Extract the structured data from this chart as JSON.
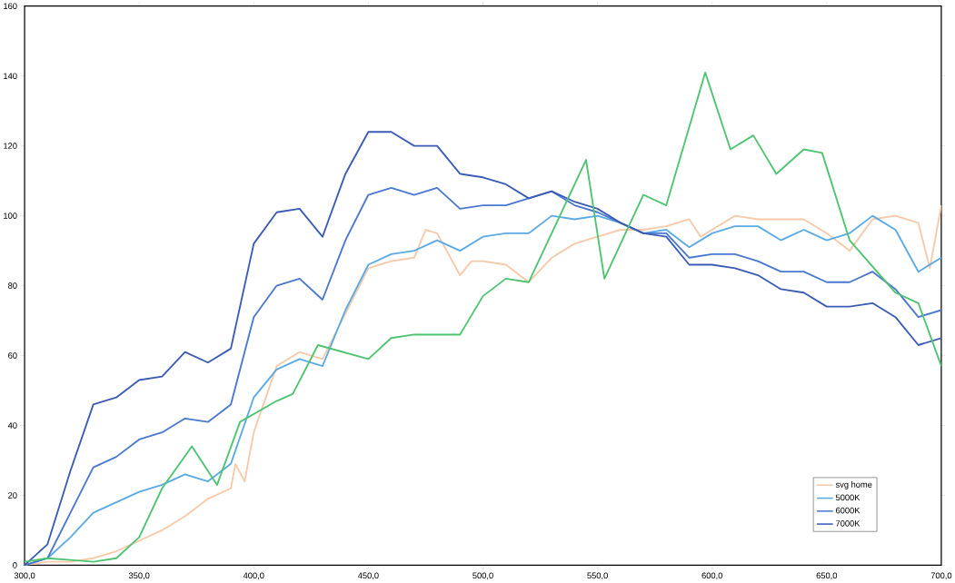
{
  "chart_data": {
    "type": "line",
    "xlim": [
      300,
      700
    ],
    "ylim": [
      0,
      160
    ],
    "xticks": [
      {
        "value": 300,
        "label": "300,0"
      },
      {
        "value": 350,
        "label": "350,0"
      },
      {
        "value": 400,
        "label": "400,0"
      },
      {
        "value": 450,
        "label": "450,0"
      },
      {
        "value": 500,
        "label": "500,0"
      },
      {
        "value": 550,
        "label": "550,0"
      },
      {
        "value": 600,
        "label": "600,0"
      },
      {
        "value": 650,
        "label": "650,0"
      },
      {
        "value": 700,
        "label": "700,0"
      }
    ],
    "yticks": [
      0,
      20,
      40,
      60,
      80,
      100,
      120,
      140,
      160
    ],
    "grid": false,
    "legend": "bottom right",
    "marker": "none",
    "line_style": "solid",
    "series": [
      {
        "name": "svg home",
        "color": "#f7c9a8",
        "x": [
          300,
          310,
          320,
          330,
          340,
          350,
          360,
          370,
          380,
          390,
          392,
          396,
          400,
          410,
          420,
          430,
          440,
          450,
          460,
          470,
          475,
          480,
          490,
          495,
          500,
          510,
          520,
          530,
          540,
          550,
          560,
          570,
          580,
          590,
          595,
          600,
          610,
          620,
          630,
          640,
          650,
          660,
          670,
          680,
          690,
          695,
          700
        ],
        "values": [
          0,
          1,
          1,
          2,
          4,
          7,
          10,
          14,
          19,
          22,
          29,
          24,
          38,
          57,
          61,
          59,
          72,
          85,
          87,
          88,
          96,
          95,
          83,
          87,
          87,
          86,
          81,
          88,
          92,
          94,
          96,
          96,
          97,
          99,
          94,
          96,
          100,
          99,
          99,
          99,
          95,
          90,
          99,
          100,
          98,
          85,
          103
        ]
      },
      {
        "name": "5000K",
        "color": "#5aaae6",
        "x": [
          300,
          310,
          320,
          330,
          340,
          350,
          360,
          370,
          380,
          390,
          400,
          410,
          420,
          430,
          440,
          450,
          460,
          470,
          480,
          490,
          500,
          510,
          520,
          530,
          540,
          550,
          560,
          570,
          580,
          590,
          600,
          610,
          620,
          630,
          640,
          650,
          660,
          670,
          680,
          690,
          700
        ],
        "values": [
          0,
          2,
          8,
          15,
          18,
          21,
          23,
          26,
          24,
          29,
          48,
          56,
          59,
          57,
          73,
          86,
          89,
          90,
          93,
          90,
          94,
          95,
          95,
          100,
          99,
          100,
          98,
          95,
          96,
          91,
          95,
          97,
          97,
          93,
          96,
          93,
          95,
          100,
          96,
          84,
          88
        ]
      },
      {
        "name": "6000K",
        "color": "#4a78d0",
        "x": [
          300,
          310,
          320,
          330,
          340,
          350,
          360,
          370,
          380,
          390,
          400,
          410,
          420,
          430,
          440,
          450,
          460,
          470,
          480,
          490,
          500,
          510,
          520,
          530,
          540,
          550,
          560,
          570,
          580,
          590,
          600,
          610,
          620,
          630,
          640,
          650,
          660,
          670,
          680,
          690,
          700
        ],
        "values": [
          0,
          2,
          15,
          28,
          31,
          36,
          38,
          42,
          41,
          46,
          71,
          80,
          82,
          76,
          93,
          106,
          108,
          106,
          108,
          102,
          103,
          103,
          105,
          107,
          103,
          101,
          98,
          95,
          95,
          88,
          89,
          89,
          87,
          84,
          84,
          81,
          81,
          84,
          79,
          71,
          73
        ]
      },
      {
        "name": "7000K",
        "color": "#3a5cb4",
        "x": [
          300,
          310,
          320,
          330,
          340,
          350,
          360,
          370,
          380,
          390,
          400,
          410,
          420,
          430,
          440,
          450,
          460,
          470,
          480,
          490,
          500,
          510,
          520,
          530,
          540,
          550,
          560,
          570,
          580,
          590,
          600,
          610,
          620,
          630,
          640,
          650,
          660,
          670,
          680,
          690,
          700
        ],
        "values": [
          0,
          6,
          27,
          46,
          48,
          53,
          54,
          61,
          58,
          62,
          92,
          101,
          102,
          94,
          112,
          124,
          124,
          120,
          120,
          112,
          111,
          109,
          105,
          107,
          104,
          102,
          98,
          95,
          94,
          86,
          86,
          85,
          83,
          79,
          78,
          74,
          74,
          75,
          71,
          63,
          65
        ]
      },
      {
        "color": "#4cc470",
        "x": [
          300,
          310,
          320,
          330,
          340,
          350,
          360,
          373,
          384,
          394,
          410,
          417,
          428,
          450,
          460,
          470,
          490,
          500,
          510,
          520,
          545,
          553,
          570,
          580,
          597,
          608,
          618,
          628,
          640,
          648,
          660,
          680,
          690,
          700
        ],
        "values": [
          1,
          2,
          1.5,
          1,
          2,
          8,
          22,
          34,
          23,
          41,
          47,
          49,
          63,
          59,
          65,
          66,
          66,
          77,
          82,
          81,
          116,
          82,
          106,
          103,
          141,
          119,
          123,
          112,
          119,
          118,
          93,
          78,
          75,
          57
        ]
      }
    ]
  }
}
